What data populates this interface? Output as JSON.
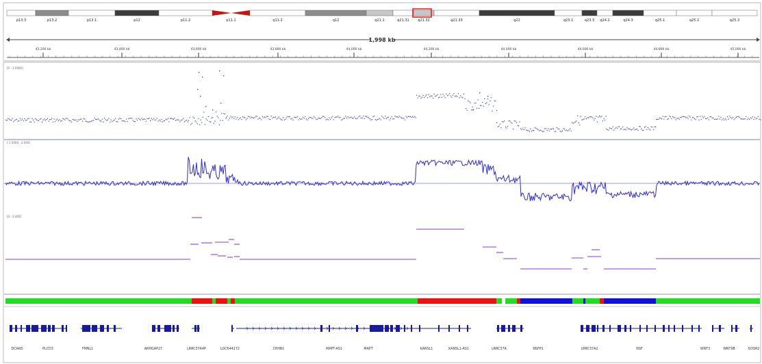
{
  "ideogram": {
    "bands": [
      {
        "label": "p13.3",
        "stain": "gneg"
      },
      {
        "label": "p13.2",
        "stain": "gpos50"
      },
      {
        "label": "p13.1",
        "stain": "gneg"
      },
      {
        "label": "p12",
        "stain": "gpos75"
      },
      {
        "label": "p11.2",
        "stain": "gneg"
      },
      {
        "label": "p11.1",
        "stain": "acen"
      },
      {
        "label": "q11.2",
        "stain": "gneg"
      },
      {
        "label": "q12",
        "stain": "gpos50"
      },
      {
        "label": "q21.1",
        "stain": "gpos25"
      },
      {
        "label": "q21.31",
        "stain": "gneg"
      },
      {
        "label": "q21.32",
        "stain": "gpos25"
      },
      {
        "label": "q21.33",
        "stain": "gneg"
      },
      {
        "label": "q22",
        "stain": "gpos75"
      },
      {
        "label": "q23.1",
        "stain": "gneg"
      },
      {
        "label": "q23.3",
        "stain": "gpos75"
      },
      {
        "label": "q24.2",
        "stain": "gneg"
      },
      {
        "label": "q24.3",
        "stain": "gpos75"
      },
      {
        "label": "q25.1",
        "stain": "gneg"
      },
      {
        "label": "q25.2",
        "stain": "gneg"
      },
      {
        "label": "q25.3",
        "stain": "gneg"
      }
    ]
  },
  "ruler": {
    "span_label": "1,998 kb",
    "ticks": [
      "43,200 kb",
      "43,400 kb",
      "43,600 kb",
      "43,800 kb",
      "44,000 kb",
      "44,200 kb",
      "44,400 kb",
      "44,600 kb",
      "44,800 kb",
      "45,000 kb"
    ]
  },
  "tracks": {
    "scatter": {
      "range_label": "[0 - 1.0000]"
    },
    "line": {
      "range_label": "[-1.5000 - 2.000]"
    },
    "segments": {
      "range_label": "[0 - 2.400]"
    }
  },
  "genes": {
    "labels": [
      "DCAKD",
      "PLCD3",
      "FMNL1",
      "ARHGAP27",
      "LRRC37A4P",
      "LOC644172",
      "CRHR1",
      "MAPT-AS1",
      "MAPT",
      "KANSL1",
      "KANSL1-AS1",
      "LRRC37A",
      "NSFP1",
      "LRRC37A2",
      "NSF",
      "WNT3",
      "WNT9B",
      "GOSR2"
    ]
  },
  "colors": {
    "data_blue": "#3a3ad6",
    "segment_purple": "#b07ce8",
    "neutral_green": "#22dd22",
    "gain_red": "#ee1111",
    "loss_blue": "#1111dd",
    "gene_navy": "#1a1aa0"
  }
}
